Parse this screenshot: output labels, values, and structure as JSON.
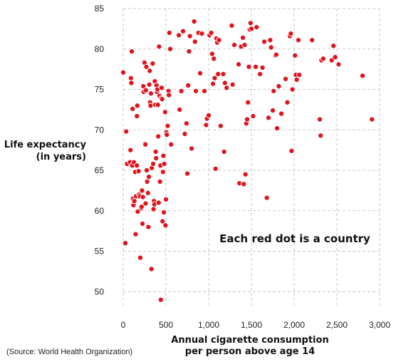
{
  "chart_data": {
    "type": "scatter",
    "title": "",
    "xlabel": [
      "Annual cigarette consumption",
      "per person above age 14"
    ],
    "ylabel": [
      "Life expectancy",
      "(in years)"
    ],
    "xlim": [
      0,
      3000
    ],
    "ylim": [
      48,
      85
    ],
    "xticks": [
      0,
      500,
      1000,
      1500,
      2000,
      2500,
      3000
    ],
    "xtick_labels": [
      "0",
      "500",
      "1,000",
      "1,500",
      "2,000",
      "2,500",
      "3,000"
    ],
    "yticks": [
      50,
      55,
      60,
      65,
      70,
      75,
      80,
      85
    ],
    "ytick_labels": [
      "50",
      "55",
      "60",
      "65",
      "70",
      "75",
      "80",
      "85"
    ],
    "grid": true,
    "annotation": "Each red dot is a country",
    "source": "(Source: World Health Organization)",
    "marker_color": "#e0131e",
    "points": [
      [
        0,
        77.1
      ],
      [
        25,
        56
      ],
      [
        35,
        69.8
      ],
      [
        45,
        65.8
      ],
      [
        80,
        66
      ],
      [
        85,
        67.5
      ],
      [
        90,
        76.4
      ],
      [
        95,
        75.8
      ],
      [
        100,
        79.7
      ],
      [
        105,
        65.6
      ],
      [
        110,
        72.6
      ],
      [
        115,
        61.5
      ],
      [
        120,
        60.7
      ],
      [
        125,
        66
      ],
      [
        130,
        61.2
      ],
      [
        140,
        64.8
      ],
      [
        145,
        57.1
      ],
      [
        150,
        61.8
      ],
      [
        160,
        65.6
      ],
      [
        160,
        71.7
      ],
      [
        165,
        73
      ],
      [
        170,
        59.9
      ],
      [
        180,
        64.9
      ],
      [
        185,
        62
      ],
      [
        195,
        61.8
      ],
      [
        200,
        54.2
      ],
      [
        210,
        60.3
      ],
      [
        215,
        60.5
      ],
      [
        220,
        62.5
      ],
      [
        225,
        58.4
      ],
      [
        230,
        61.7
      ],
      [
        235,
        75.4
      ],
      [
        240,
        74.7
      ],
      [
        245,
        78.4
      ],
      [
        250,
        78.3
      ],
      [
        255,
        68.3
      ],
      [
        260,
        68.2
      ],
      [
        262,
        60.9
      ],
      [
        265,
        74.9
      ],
      [
        270,
        77.8
      ],
      [
        275,
        65
      ],
      [
        280,
        63.6
      ],
      [
        290,
        62.2
      ],
      [
        295,
        58
      ],
      [
        300,
        64.2
      ],
      [
        305,
        75.6
      ],
      [
        310,
        77.3
      ],
      [
        315,
        73.4
      ],
      [
        320,
        73
      ],
      [
        325,
        74.5
      ],
      [
        330,
        52.8
      ],
      [
        335,
        65.3
      ],
      [
        340,
        78.2
      ],
      [
        345,
        78.2
      ],
      [
        350,
        65.8
      ],
      [
        355,
        60.2
      ],
      [
        360,
        61.2
      ],
      [
        365,
        60.8
      ],
      [
        370,
        76
      ],
      [
        375,
        73.1
      ],
      [
        380,
        67.3
      ],
      [
        385,
        66.5
      ],
      [
        390,
        75.5
      ],
      [
        395,
        74.7
      ],
      [
        400,
        75
      ],
      [
        405,
        73.1
      ],
      [
        410,
        69.2
      ],
      [
        415,
        61
      ],
      [
        420,
        80.3
      ],
      [
        425,
        74.2
      ],
      [
        430,
        63.6
      ],
      [
        435,
        65.6
      ],
      [
        440,
        49
      ],
      [
        445,
        73.9
      ],
      [
        450,
        75.2
      ],
      [
        455,
        73.8
      ],
      [
        460,
        58.7
      ],
      [
        465,
        64.8
      ],
      [
        470,
        66.8
      ],
      [
        475,
        59.8
      ],
      [
        480,
        65.8
      ],
      [
        490,
        72.2
      ],
      [
        495,
        58.2
      ],
      [
        500,
        61.4
      ],
      [
        505,
        69.7
      ],
      [
        510,
        69.4
      ],
      [
        520,
        70.5
      ],
      [
        530,
        74.8
      ],
      [
        535,
        74.3
      ],
      [
        540,
        82
      ],
      [
        550,
        80
      ],
      [
        560,
        68.2
      ],
      [
        650,
        81.7
      ],
      [
        660,
        72.5
      ],
      [
        680,
        74.8
      ],
      [
        700,
        82.2
      ],
      [
        720,
        69.5
      ],
      [
        740,
        70.8
      ],
      [
        750,
        64.6
      ],
      [
        760,
        75.5
      ],
      [
        770,
        79.7
      ],
      [
        780,
        81.6
      ],
      [
        800,
        67.7
      ],
      [
        830,
        83.4
      ],
      [
        840,
        80.9
      ],
      [
        850,
        74.8
      ],
      [
        880,
        82
      ],
      [
        900,
        77
      ],
      [
        920,
        81.9
      ],
      [
        950,
        74.8
      ],
      [
        970,
        70.6
      ],
      [
        980,
        71.4
      ],
      [
        1000,
        71.8
      ],
      [
        1010,
        81.7
      ],
      [
        1030,
        82
      ],
      [
        1040,
        79.4
      ],
      [
        1050,
        75.7
      ],
      [
        1060,
        78.8
      ],
      [
        1070,
        76.4
      ],
      [
        1080,
        65.2
      ],
      [
        1090,
        81.3
      ],
      [
        1100,
        80.8
      ],
      [
        1110,
        76.9
      ],
      [
        1120,
        81.1
      ],
      [
        1140,
        70.5
      ],
      [
        1170,
        76.9
      ],
      [
        1180,
        67.3
      ],
      [
        1190,
        75.8
      ],
      [
        1210,
        75.2
      ],
      [
        1270,
        82.9
      ],
      [
        1280,
        75.6
      ],
      [
        1300,
        80.5
      ],
      [
        1350,
        78.1
      ],
      [
        1360,
        63.4
      ],
      [
        1380,
        80.3
      ],
      [
        1400,
        81.4
      ],
      [
        1410,
        63.3
      ],
      [
        1420,
        80.5
      ],
      [
        1430,
        64.5
      ],
      [
        1440,
        70.8
      ],
      [
        1450,
        71.3
      ],
      [
        1460,
        73.4
      ],
      [
        1470,
        77.8
      ],
      [
        1480,
        82.4
      ],
      [
        1490,
        83.2
      ],
      [
        1500,
        82.5
      ],
      [
        1520,
        71.7
      ],
      [
        1550,
        77.8
      ],
      [
        1560,
        82.7
      ],
      [
        1600,
        76.9
      ],
      [
        1630,
        77.7
      ],
      [
        1650,
        80.9
      ],
      [
        1680,
        61.6
      ],
      [
        1700,
        71.5
      ],
      [
        1720,
        81.1
      ],
      [
        1730,
        80.2
      ],
      [
        1750,
        72.4
      ],
      [
        1760,
        74.8
      ],
      [
        1780,
        79.2
      ],
      [
        1790,
        79.3
      ],
      [
        1800,
        70.2
      ],
      [
        1820,
        75.4
      ],
      [
        1850,
        72
      ],
      [
        1900,
        76.3
      ],
      [
        1920,
        73.4
      ],
      [
        1950,
        81.6
      ],
      [
        1960,
        81.9
      ],
      [
        1970,
        67.4
      ],
      [
        1980,
        75
      ],
      [
        2010,
        79.2
      ],
      [
        2020,
        76.8
      ],
      [
        2030,
        76.2
      ],
      [
        2050,
        81.1
      ],
      [
        2060,
        76.8
      ],
      [
        2210,
        81.1
      ],
      [
        2300,
        71.3
      ],
      [
        2310,
        69.3
      ],
      [
        2320,
        78.6
      ],
      [
        2340,
        78.8
      ],
      [
        2440,
        78.6
      ],
      [
        2460,
        80.4
      ],
      [
        2480,
        79
      ],
      [
        2520,
        78.1
      ],
      [
        2800,
        76.7
      ],
      [
        2910,
        71.3
      ]
    ]
  }
}
